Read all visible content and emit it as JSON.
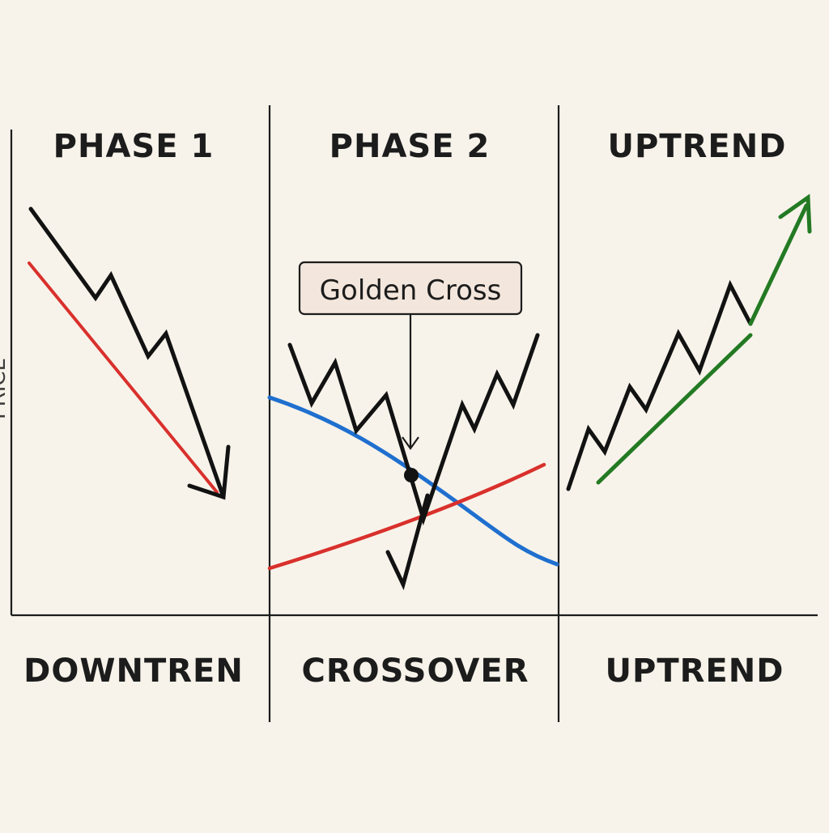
{
  "axis": {
    "y_label": "PRICE"
  },
  "panels": [
    {
      "top_heading": "PHASE 1",
      "bottom_label": "DOWNTREN"
    },
    {
      "top_heading": "PHASE 2",
      "bottom_label": "CROSSOVER",
      "callout": "Golden Cross"
    },
    {
      "top_heading": "UPTREND",
      "bottom_label": "UPTREND"
    }
  ],
  "colors": {
    "background": "#f7f3ea",
    "price_line": "#121212",
    "short_ma": "#d9302c",
    "long_ma": "#1f6fcf",
    "uptrend_ma": "#237a23",
    "callout_fill": "#f3e6dc",
    "dividers": "#1c1c1c"
  }
}
